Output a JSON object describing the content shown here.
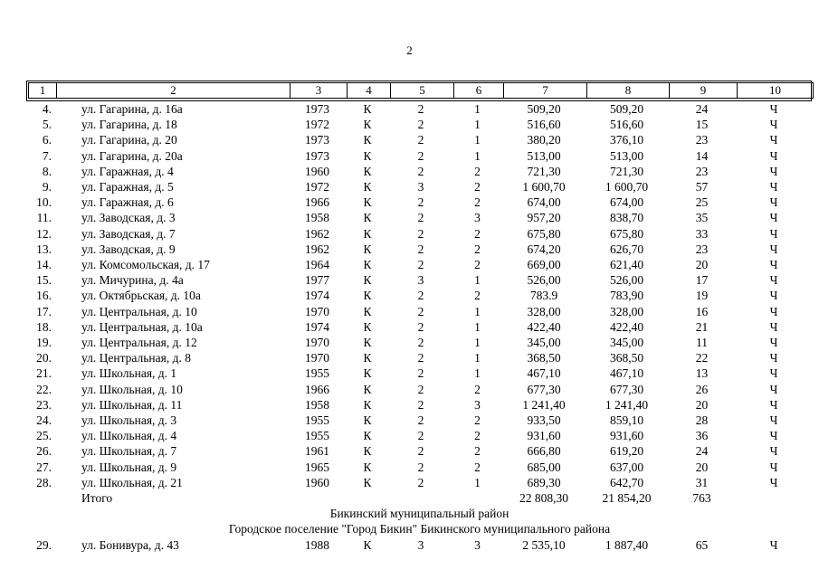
{
  "page": {
    "number": "2"
  },
  "table": {
    "column_headers": [
      "1",
      "2",
      "3",
      "4",
      "5",
      "6",
      "7",
      "8",
      "9",
      "10"
    ],
    "rows": [
      {
        "type": "data",
        "cells": [
          "4.",
          "ул. Гагарина, д. 16а",
          "1973",
          "К",
          "2",
          "1",
          "509,20",
          "509,20",
          "24",
          "Ч"
        ]
      },
      {
        "type": "data",
        "cells": [
          "5.",
          "ул. Гагарина, д. 18",
          "1972",
          "К",
          "2",
          "1",
          "516,60",
          "516,60",
          "15",
          "Ч"
        ]
      },
      {
        "type": "data",
        "cells": [
          "6.",
          "ул. Гагарина, д. 20",
          "1973",
          "К",
          "2",
          "1",
          "380,20",
          "376,10",
          "23",
          "Ч"
        ]
      },
      {
        "type": "data",
        "cells": [
          "7.",
          "ул. Гагарина, д. 20а",
          "1973",
          "К",
          "2",
          "1",
          "513,00",
          "513,00",
          "14",
          "Ч"
        ]
      },
      {
        "type": "data",
        "cells": [
          "8.",
          "ул. Гаражная, д. 4",
          "1960",
          "К",
          "2",
          "2",
          "721,30",
          "721,30",
          "23",
          "Ч"
        ]
      },
      {
        "type": "data",
        "cells": [
          "9.",
          "ул. Гаражная, д. 5",
          "1972",
          "К",
          "3",
          "2",
          "1 600,70",
          "1 600,70",
          "57",
          "Ч"
        ]
      },
      {
        "type": "data",
        "cells": [
          "10.",
          "ул. Гаражная, д. 6",
          "1966",
          "К",
          "2",
          "2",
          "674,00",
          "674,00",
          "25",
          "Ч"
        ]
      },
      {
        "type": "data",
        "cells": [
          "11.",
          "ул. Заводская, д. 3",
          "1958",
          "К",
          "2",
          "3",
          "957,20",
          "838,70",
          "35",
          "Ч"
        ]
      },
      {
        "type": "data",
        "cells": [
          "12.",
          "ул. Заводская, д. 7",
          "1962",
          "К",
          "2",
          "2",
          "675,80",
          "675,80",
          "33",
          "Ч"
        ]
      },
      {
        "type": "data",
        "cells": [
          "13.",
          "ул. Заводская, д. 9",
          "1962",
          "К",
          "2",
          "2",
          "674,20",
          "626,70",
          "23",
          "Ч"
        ]
      },
      {
        "type": "data",
        "cells": [
          "14.",
          "ул. Комсомольская, д. 17",
          "1964",
          "К",
          "2",
          "2",
          "669,00",
          "621,40",
          "20",
          "Ч"
        ]
      },
      {
        "type": "data",
        "cells": [
          "15.",
          "ул. Мичурина, д. 4а",
          "1977",
          "К",
          "3",
          "1",
          "526,00",
          "526,00",
          "17",
          "Ч"
        ]
      },
      {
        "type": "data",
        "cells": [
          "16.",
          "ул. Октябрьская, д. 10а",
          "1974",
          "К",
          "2",
          "2",
          "783.9",
          "783,90",
          "19",
          "Ч"
        ]
      },
      {
        "type": "data",
        "cells": [
          "17.",
          "ул. Центральная, д. 10",
          "1970",
          "К",
          "2",
          "1",
          "328,00",
          "328,00",
          "16",
          "Ч"
        ]
      },
      {
        "type": "data",
        "cells": [
          "18.",
          "ул. Центральная, д. 10а",
          "1974",
          "К",
          "2",
          "1",
          "422,40",
          "422,40",
          "21",
          "Ч"
        ]
      },
      {
        "type": "data",
        "cells": [
          "19.",
          "ул. Центральная, д. 12",
          "1970",
          "К",
          "2",
          "1",
          "345,00",
          "345,00",
          "11",
          "Ч"
        ]
      },
      {
        "type": "data",
        "cells": [
          "20.",
          "ул. Центральная, д. 8",
          "1970",
          "К",
          "2",
          "1",
          "368,50",
          "368,50",
          "22",
          "Ч"
        ]
      },
      {
        "type": "data",
        "cells": [
          "21.",
          "ул. Школьная, д. 1",
          "1955",
          "К",
          "2",
          "1",
          "467,10",
          "467,10",
          "13",
          "Ч"
        ]
      },
      {
        "type": "data",
        "cells": [
          "22.",
          "ул. Школьная, д. 10",
          "1966",
          "К",
          "2",
          "2",
          "677,30",
          "677,30",
          "26",
          "Ч"
        ]
      },
      {
        "type": "data",
        "cells": [
          "23.",
          "ул. Школьная, д. 11",
          "1958",
          "К",
          "2",
          "3",
          "1 241,40",
          "1 241,40",
          "20",
          "Ч"
        ]
      },
      {
        "type": "data",
        "cells": [
          "24.",
          "ул. Школьная, д. 3",
          "1955",
          "К",
          "2",
          "2",
          "933,50",
          "859,10",
          "28",
          "Ч"
        ]
      },
      {
        "type": "data",
        "cells": [
          "25.",
          "ул. Школьная, д. 4",
          "1955",
          "К",
          "2",
          "2",
          "931,60",
          "931,60",
          "36",
          "Ч"
        ]
      },
      {
        "type": "data",
        "cells": [
          "26.",
          "ул. Школьная, д. 7",
          "1961",
          "К",
          "2",
          "2",
          "666,80",
          "619,20",
          "24",
          "Ч"
        ]
      },
      {
        "type": "data",
        "cells": [
          "27.",
          "ул. Школьная, д. 9",
          "1965",
          "К",
          "2",
          "2",
          "685,00",
          "637,00",
          "20",
          "Ч"
        ]
      },
      {
        "type": "data",
        "cells": [
          "28.",
          "ул. Школьная, д. 21",
          "1960",
          "К",
          "2",
          "1",
          "689,30",
          "642,70",
          "31",
          "Ч"
        ]
      },
      {
        "type": "data",
        "cells": [
          "",
          "Итого",
          "",
          "",
          "",
          "",
          "22 808,30",
          "21 854,20",
          "763",
          ""
        ]
      },
      {
        "type": "section",
        "text": "Бикинский муниципальный район"
      },
      {
        "type": "section",
        "text": "Городское поселение \"Город Бикин\" Бикинского муниципального района"
      },
      {
        "type": "data",
        "cells": [
          "29.",
          "ул. Бонивура, д. 43",
          "1988",
          "К",
          "3",
          "3",
          "2 535,10",
          "1 887,40",
          "65",
          "Ч"
        ]
      }
    ]
  }
}
